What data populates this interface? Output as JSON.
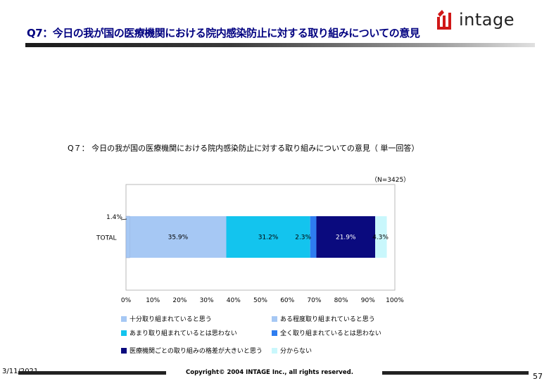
{
  "slide": {
    "title": "Q7：今日の我が国の医療機関における院内感染防止に対する取り組みについての意見",
    "logo_text": "intage",
    "footer_date": "3/11/2021",
    "copyright": "Copyright© 2004 INTAGE Inc., all rights reserved.",
    "page_number": "57"
  },
  "colors": {
    "title": "#000080",
    "s1": "#a6c8f4",
    "s2": "#13c4ee",
    "s3": "#2e7df0",
    "s4": "#0a0a7e",
    "s5": "#c9f7fc"
  },
  "chart_data": {
    "type": "bar",
    "orientation": "horizontal",
    "stacked": true,
    "title": "Q７： 今日の我が国の医療機関における院内感染防止に対する取り組みについての意見（ 単一回答）",
    "sample_size": "（N=3425）",
    "categories": [
      "TOTAL"
    ],
    "xlim": [
      0,
      100
    ],
    "x_ticks": [
      "0%",
      "10%",
      "20%",
      "30%",
      "40%",
      "50%",
      "60%",
      "70%",
      "80%",
      "90%",
      "100%"
    ],
    "series": [
      {
        "name": "十分取り組まれていると思う",
        "values": [
          1.4
        ],
        "label": "1.4%"
      },
      {
        "name": "ある程度取り組まれていると思う",
        "values": [
          35.9
        ],
        "label": "35.9%"
      },
      {
        "name": "あまり取り組まれているとは思わない",
        "values": [
          31.2
        ],
        "label": "31.2%"
      },
      {
        "name": "全く取り組まれているとは思わない",
        "values": [
          2.3
        ],
        "label": "2.3%"
      },
      {
        "name": "医療機関ごとの取り組みの格差が大きいと思う",
        "values": [
          21.9
        ],
        "label": "21.9%"
      },
      {
        "name": "分からない",
        "values": [
          4.3
        ],
        "label": "4.3%"
      }
    ],
    "legend_position": "bottom",
    "grid": false
  }
}
